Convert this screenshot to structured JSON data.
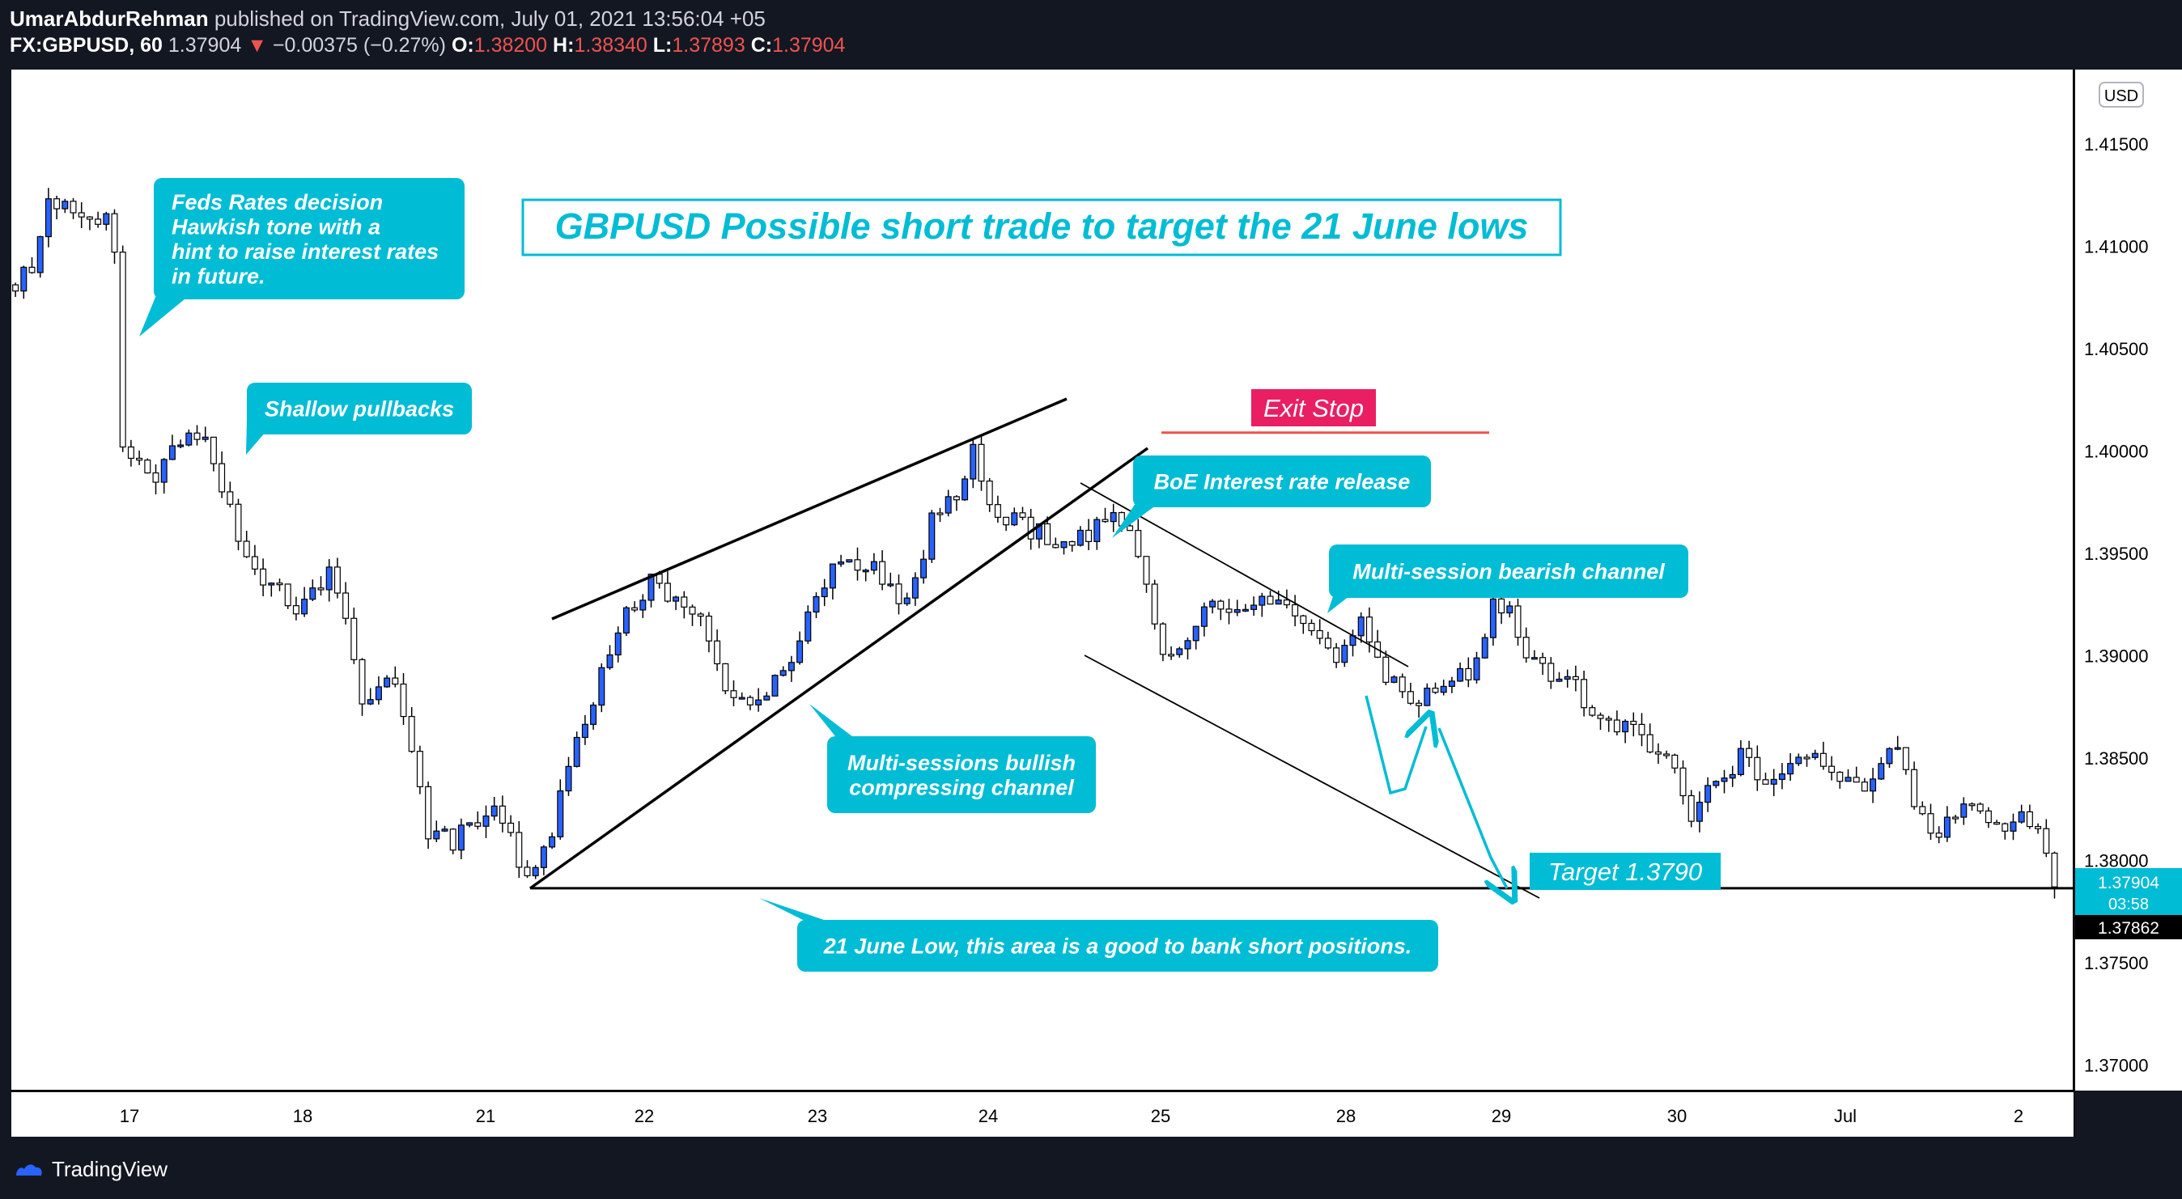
{
  "header": {
    "author": "UmarAbdurRehman",
    "published": "published on TradingView.com, July 01, 2021 13:56:04 +05",
    "symbol": "FX:GBPUSD, 60",
    "last": "1.37904",
    "arrow": "▼",
    "change": "−0.00375 (−0.27%)",
    "o_label": "O:",
    "o_value": "1.38200",
    "h_label": "H:",
    "h_value": "1.38340",
    "l_label": "L:",
    "l_value": "1.37893",
    "c_label": "C:",
    "c_value": "1.37904"
  },
  "footer": {
    "brand": "TradingView"
  },
  "colors": {
    "cyan": "#00bcd4",
    "pink": "#e91e63",
    "red": "#ef5350",
    "bull": "#2962ff",
    "bear_fill": "#ffffff",
    "candle_outline": "#000000"
  },
  "chart_data": {
    "type": "candlestick",
    "title": "GBPUSD Possible short trade to target the 21 June lows",
    "currency": "USD",
    "ylim": [
      1.368,
      1.418
    ],
    "y_ticks": [
      "1.41500",
      "1.41000",
      "1.40500",
      "1.40000",
      "1.39500",
      "1.39000",
      "1.38500",
      "1.38000",
      "1.37500",
      "1.37000"
    ],
    "x_ticks": [
      "17",
      "18",
      "21",
      "22",
      "23",
      "24",
      "25",
      "28",
      "29",
      "30",
      "Jul",
      "2"
    ],
    "price_label": "1.37904",
    "countdown": "03:58",
    "low_label": "1.37862",
    "annotations": [
      "Feds Rates decision\nHawkish tone with a\nhint to raise interest rates\nin future.",
      "Shallow pullbacks",
      "BoE Interest rate release",
      "Multi-session bearish channel",
      "Multi-sessions bullish\ncompressing channel",
      "21 June Low, this area is a good to bank short positions."
    ],
    "exit_stop": "Exit Stop",
    "target": "Target 1.3790",
    "levels": {
      "june21_low": 1.37864,
      "exit_stop": 1.4009,
      "target": 1.379
    },
    "path_points": [
      [
        0,
        1.408
      ],
      [
        2,
        1.409
      ],
      [
        4,
        1.412
      ],
      [
        8,
        1.4115
      ],
      [
        11,
        1.4112
      ],
      [
        12,
        1.41
      ],
      [
        13,
        1.4
      ],
      [
        17,
        1.3985
      ],
      [
        20,
        1.4005
      ],
      [
        23,
        1.4005
      ],
      [
        25,
        1.3985
      ],
      [
        28,
        1.3945
      ],
      [
        31,
        1.3935
      ],
      [
        34,
        1.3925
      ],
      [
        38,
        1.394
      ],
      [
        40,
        1.392
      ],
      [
        42,
        1.388
      ],
      [
        44,
        1.3885
      ],
      [
        46,
        1.389
      ],
      [
        48,
        1.385
      ],
      [
        50,
        1.3815
      ],
      [
        53,
        1.381
      ],
      [
        57,
        1.382
      ],
      [
        58,
        1.383
      ],
      [
        60,
        1.381
      ],
      [
        61,
        1.38
      ],
      [
        62,
        1.379
      ],
      [
        65,
        1.381
      ],
      [
        67,
        1.385
      ],
      [
        70,
        1.388
      ],
      [
        73,
        1.3915
      ],
      [
        77,
        1.3935
      ],
      [
        80,
        1.3925
      ],
      [
        83,
        1.3915
      ],
      [
        86,
        1.3885
      ],
      [
        89,
        1.3875
      ],
      [
        91,
        1.388
      ],
      [
        94,
        1.39
      ],
      [
        97,
        1.393
      ],
      [
        100,
        1.3945
      ],
      [
        103,
        1.3945
      ],
      [
        106,
        1.3935
      ],
      [
        108,
        1.3925
      ],
      [
        111,
        1.3965
      ],
      [
        114,
        1.398
      ],
      [
        116,
        1.4
      ],
      [
        118,
        1.397
      ],
      [
        121,
        1.3965
      ],
      [
        124,
        1.396
      ],
      [
        127,
        1.3955
      ],
      [
        130,
        1.396
      ],
      [
        133,
        1.397
      ],
      [
        135,
        1.3965
      ],
      [
        137,
        1.393
      ],
      [
        139,
        1.39
      ],
      [
        142,
        1.391
      ],
      [
        145,
        1.3925
      ],
      [
        148,
        1.392
      ],
      [
        151,
        1.3925
      ],
      [
        154,
        1.3925
      ],
      [
        157,
        1.391
      ],
      [
        160,
        1.39
      ],
      [
        163,
        1.3915
      ],
      [
        166,
        1.389
      ],
      [
        169,
        1.3875
      ],
      [
        172,
        1.3885
      ],
      [
        175,
        1.389
      ],
      [
        177,
        1.3895
      ],
      [
        179,
        1.3925
      ],
      [
        181,
        1.392
      ],
      [
        183,
        1.39
      ],
      [
        186,
        1.389
      ],
      [
        189,
        1.3885
      ],
      [
        192,
        1.3865
      ],
      [
        195,
        1.3865
      ],
      [
        197,
        1.386
      ],
      [
        199,
        1.3855
      ],
      [
        201,
        1.3845
      ],
      [
        203,
        1.382
      ],
      [
        206,
        1.384
      ],
      [
        209,
        1.385
      ],
      [
        212,
        1.384
      ],
      [
        215,
        1.3845
      ],
      [
        218,
        1.385
      ],
      [
        221,
        1.384
      ],
      [
        224,
        1.383
      ],
      [
        226,
        1.3845
      ],
      [
        228,
        1.386
      ],
      [
        230,
        1.383
      ],
      [
        232,
        1.381
      ],
      [
        235,
        1.382
      ],
      [
        237,
        1.383
      ],
      [
        240,
        1.3815
      ],
      [
        243,
        1.382
      ],
      [
        245,
        1.3818
      ],
      [
        247,
        1.379
      ]
    ]
  }
}
